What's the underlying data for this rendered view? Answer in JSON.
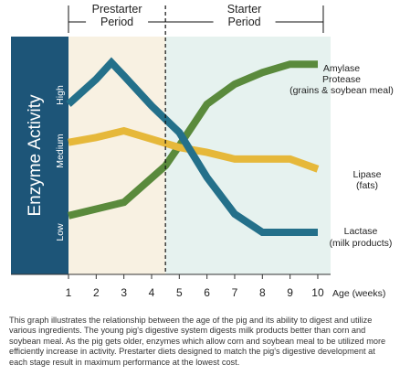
{
  "chart_data": {
    "type": "line",
    "periods": [
      {
        "label_line1": "Prestarter",
        "label_line2": "Period",
        "from_week": 1,
        "to_week": 4.5
      },
      {
        "label_line1": "Starter",
        "label_line2": "Period",
        "from_week": 4.5,
        "to_week": 10
      }
    ],
    "ylabel": "Enzyme Activity",
    "y_levels": [
      "Low",
      "Medium",
      "High"
    ],
    "ylim": [
      0,
      100
    ],
    "x_ticks": [
      1,
      2,
      3,
      4,
      5,
      6,
      7,
      8,
      9,
      10
    ],
    "xlabel": "Age (weeks)",
    "xlim": [
      1,
      10
    ],
    "period_divider_week": 4.5,
    "series": [
      {
        "name_line1": "Amylase",
        "name_line2": "Protease",
        "name_line3": "(grains & soybean meal)",
        "color": "#5a8a3c",
        "points": [
          [
            1,
            10
          ],
          [
            3,
            18
          ],
          [
            4.5,
            40
          ],
          [
            5,
            52
          ],
          [
            6,
            77
          ],
          [
            7,
            89
          ],
          [
            8,
            96
          ],
          [
            9,
            101
          ],
          [
            10,
            101
          ]
        ]
      },
      {
        "name_line1": "Lipase",
        "name_line2": "(fats)",
        "color": "#e6b83a",
        "points": [
          [
            1,
            54
          ],
          [
            2,
            57
          ],
          [
            3,
            61
          ],
          [
            4,
            56
          ],
          [
            5,
            51
          ],
          [
            6,
            48
          ],
          [
            7,
            44
          ],
          [
            8,
            44
          ],
          [
            9,
            44
          ],
          [
            10,
            38
          ]
        ]
      },
      {
        "name_line1": "Lactase",
        "name_line2": "(milk products)",
        "color": "#24708a",
        "points": [
          [
            1,
            77
          ],
          [
            2,
            92
          ],
          [
            2.55,
            102
          ],
          [
            3,
            94
          ],
          [
            4,
            76
          ],
          [
            5,
            60
          ],
          [
            6,
            33
          ],
          [
            7,
            11
          ],
          [
            8,
            0
          ],
          [
            10,
            0
          ]
        ]
      }
    ]
  },
  "caption": "This graph illustrates the relationship between the age of the pig and its ability to digest and utilize various ingredients. The young pig's digestive system digests milk products better than corn and soybean meal. As the pig gets older, enzymes which allow corn and soybean meal to be utilized more efficiently increase in activity. Prestarter diets designed to match the pig's digestive development at each stage result in maximum performance at the lowest cost.",
  "colors": {
    "prestarter_bg": "#f8f1e2",
    "starter_bg": "#e6f2ef",
    "ylabel_band": "#1d5578",
    "axis": "#333333"
  }
}
